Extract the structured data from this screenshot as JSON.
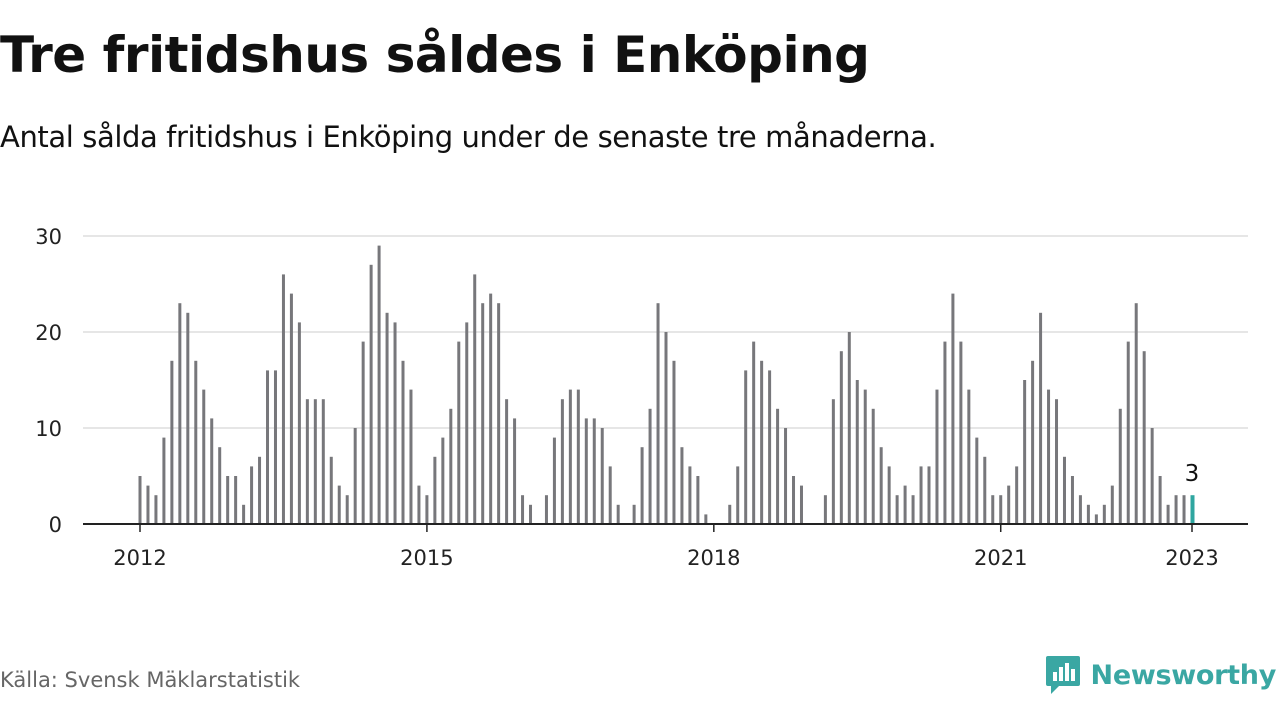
{
  "title": "Tre fritidshus såldes i Enköping",
  "subtitle": "Antal sålda fritidshus i Enköping under de senaste tre månaderna.",
  "source": "Källa: Svensk Mäklarstatistik",
  "brand": {
    "name": "Newsworthy",
    "icon": "newsworthy-logo-icon",
    "color": "#3aa7a3"
  },
  "colors": {
    "bar": "#77777b",
    "highlight": "#2fa6a0",
    "grid": "#dddddd",
    "axis": "#222222"
  },
  "chart_data": {
    "type": "bar",
    "title": "Tre fritidshus såldes i Enköping",
    "xlabel": "",
    "ylabel": "",
    "ylim": [
      0,
      30
    ],
    "yticks": [
      "0",
      "10",
      "20",
      "30"
    ],
    "ytick_values": [
      0,
      10,
      20,
      30
    ],
    "xticks": [
      "2012",
      "2015",
      "2018",
      "2021",
      "2023"
    ],
    "xtick_dates": [
      "2012-01",
      "2015-01",
      "2018-01",
      "2021-01",
      "2023-01"
    ],
    "grid": true,
    "x_start": "2012-01",
    "x_end": "2023-01",
    "highlight": {
      "date": "2023-01",
      "value": 3,
      "label": "3"
    },
    "series": [
      {
        "values": [
          5,
          4,
          3,
          9,
          17,
          23,
          22,
          17,
          14,
          11,
          8,
          5,
          5,
          2,
          6,
          7,
          16,
          16,
          26,
          24,
          21,
          13,
          13,
          13,
          7,
          4,
          3,
          10,
          19,
          27,
          29,
          22,
          21,
          17,
          14,
          4,
          3,
          7,
          9,
          12,
          19,
          21,
          26,
          23,
          24,
          23,
          13,
          11,
          3,
          2,
          0,
          3,
          9,
          13,
          14,
          14,
          11,
          11,
          10,
          6,
          2,
          0,
          2,
          8,
          12,
          23,
          20,
          17,
          8,
          6,
          5,
          1,
          0,
          0,
          2,
          6,
          16,
          19,
          17,
          16,
          12,
          10,
          5,
          4,
          0,
          0,
          3,
          13,
          18,
          20,
          15,
          14,
          12,
          8,
          6,
          3,
          4,
          3,
          6,
          6,
          14,
          19,
          24,
          19,
          14,
          9,
          7,
          3,
          3,
          4,
          6,
          15,
          17,
          22,
          14,
          13,
          7,
          5,
          3,
          2,
          1,
          2,
          4,
          12,
          19,
          23,
          18,
          10,
          5,
          2,
          3,
          3,
          3
        ]
      }
    ]
  }
}
